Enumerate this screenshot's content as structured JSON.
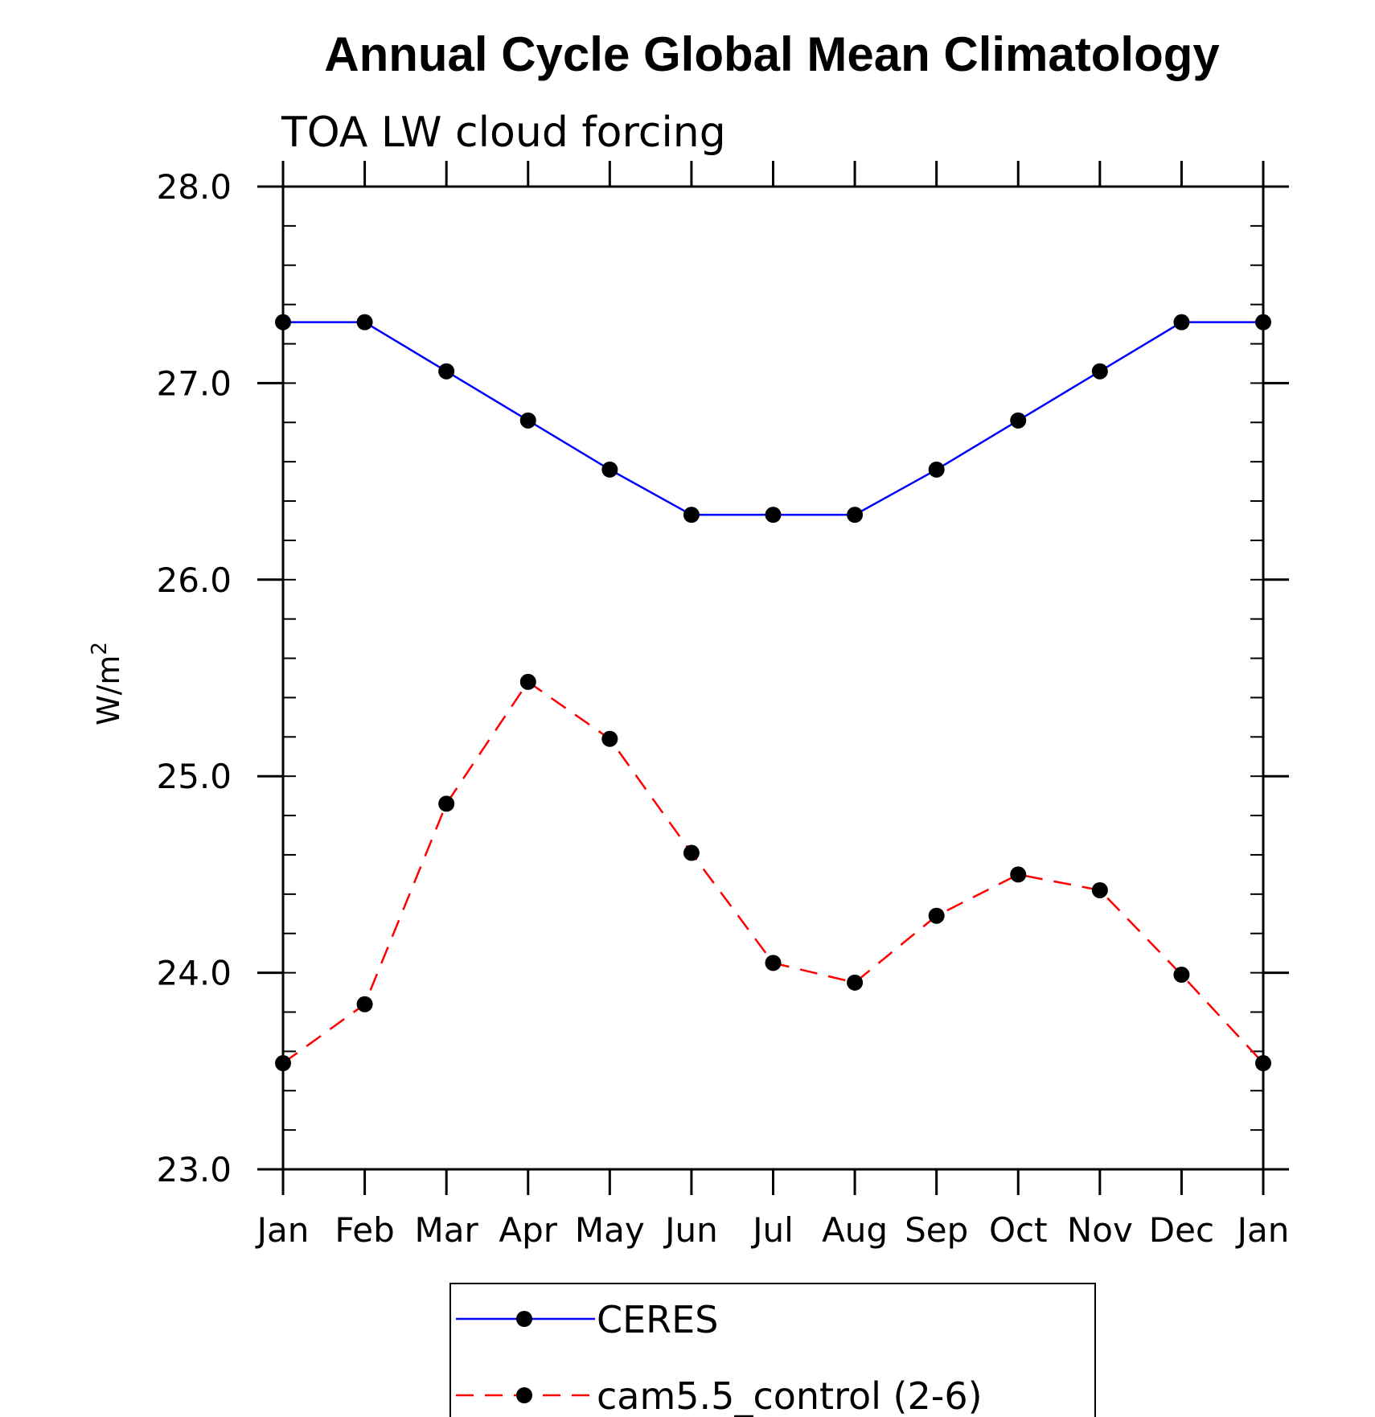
{
  "chart_data": {
    "type": "line",
    "title": "Annual Cycle Global Mean Climatology",
    "subtitle": "TOA LW cloud forcing",
    "xlabel": "",
    "ylabel_base": "W/m",
    "ylabel_sup": "2",
    "categories": [
      "Jan",
      "Feb",
      "Mar",
      "Apr",
      "May",
      "Jun",
      "Jul",
      "Aug",
      "Sep",
      "Oct",
      "Nov",
      "Dec",
      "Jan"
    ],
    "ylim": [
      23.0,
      28.0
    ],
    "yticks": [
      23.0,
      24.0,
      25.0,
      26.0,
      27.0,
      28.0
    ],
    "ytick_labels": [
      "23.0",
      "24.0",
      "25.0",
      "26.0",
      "27.0",
      "28.0"
    ],
    "minor_ytick_step": 0.2,
    "grid": false,
    "legend_position": "bottom-center",
    "series": [
      {
        "name": "CERES",
        "color": "#0000ff",
        "line_style": "solid",
        "marker": "filled-circle",
        "values": [
          27.31,
          27.31,
          27.06,
          26.81,
          26.56,
          26.33,
          26.33,
          26.33,
          26.56,
          26.81,
          27.06,
          27.31,
          27.31
        ]
      },
      {
        "name": "cam5.5_control (2-6)",
        "color": "#ff0000",
        "line_style": "dashed",
        "marker": "filled-circle",
        "values": [
          23.54,
          23.84,
          24.86,
          25.48,
          25.19,
          24.61,
          24.05,
          23.95,
          24.29,
          24.5,
          24.42,
          23.99,
          23.54
        ]
      }
    ]
  }
}
